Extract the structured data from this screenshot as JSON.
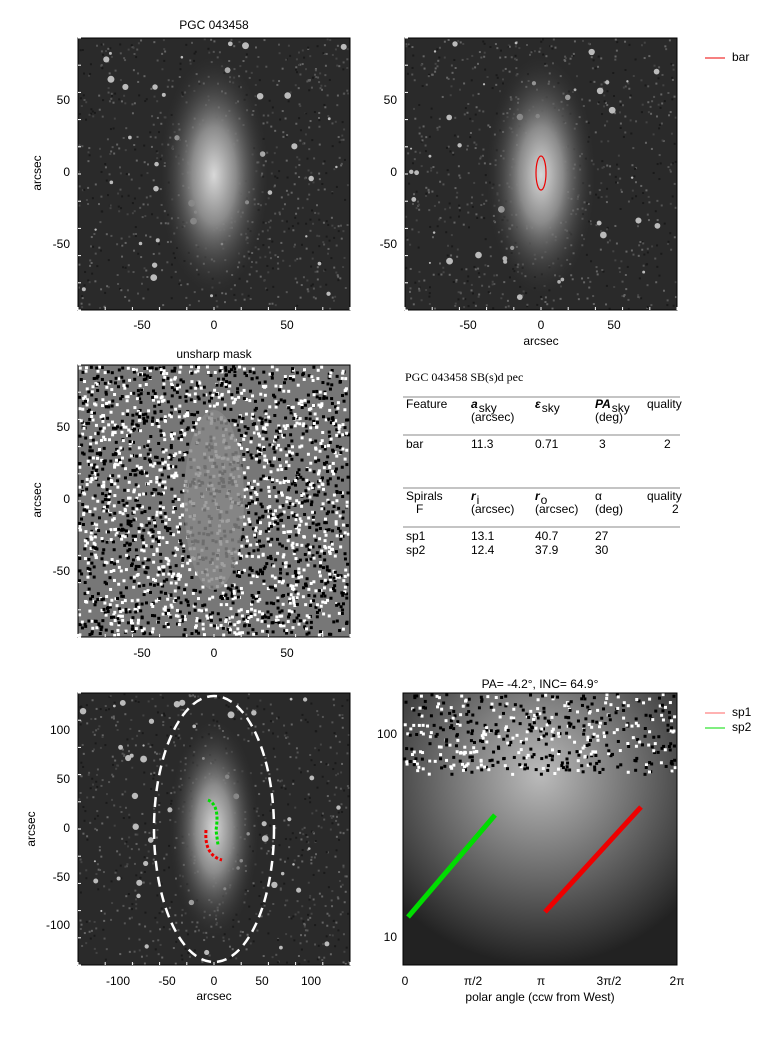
{
  "panels": {
    "image": {
      "title": "PGC 043458",
      "ylabel": "arcsec",
      "xticks": [
        "-50",
        "0",
        "50"
      ],
      "yticks": [
        "50",
        "0",
        "-50"
      ]
    },
    "bar": {
      "xlabel": "arcsec",
      "xticks": [
        "-50",
        "0",
        "50"
      ],
      "yticks": [
        "50",
        "0",
        "-50"
      ],
      "legend": [
        "bar"
      ]
    },
    "unsharp": {
      "title": "unsharp mask",
      "ylabel": "arcsec",
      "xticks": [
        "-50",
        "0",
        "50"
      ],
      "yticks": [
        "50",
        "0",
        "-50"
      ]
    },
    "spirals_image": {
      "xlabel": "arcsec",
      "ylabel": "arcsec",
      "xticks": [
        "-100",
        "-50",
        "0",
        "50",
        "100"
      ],
      "yticks": [
        "100",
        "50",
        "0",
        "-50",
        "-100"
      ]
    },
    "polar": {
      "title": "PA=  -4.2°, INC=  64.9°",
      "xlabel": "polar angle (ccw from West)",
      "xticks": [
        "0",
        "π/2",
        "π",
        "3π/2",
        "2π"
      ],
      "yticks": [
        "100",
        "10"
      ],
      "legend": [
        "sp1",
        "sp2"
      ]
    }
  },
  "table": {
    "title": "PGC 043458  SB(s)d pec",
    "bar_header": [
      {
        "symbol": "Feature"
      },
      {
        "symbol": "a",
        "sub": "sky",
        "unit": "(arcsec)"
      },
      {
        "symbol": "ε",
        "sub": "sky"
      },
      {
        "symbol": "PA",
        "sub": "sky",
        "unit": "(deg)"
      },
      {
        "symbol": "quality"
      }
    ],
    "bar_rows": [
      [
        "bar",
        "11.3",
        "0.71",
        "3",
        "2"
      ]
    ],
    "spiral_header": [
      {
        "symbol": "Spirals",
        "unit": "F"
      },
      {
        "symbol": "r",
        "sub": "i",
        "unit": "(arcsec)"
      },
      {
        "symbol": "r",
        "sub": "o",
        "unit": "(arcsec)"
      },
      {
        "symbol": "α",
        "unit": "(deg)"
      },
      {
        "symbol": "quality",
        "unit": "2"
      }
    ],
    "spiral_rows": [
      [
        "sp1",
        "13.1",
        "40.7",
        "27"
      ],
      [
        "sp2",
        "12.4",
        "37.9",
        "30"
      ]
    ]
  }
}
